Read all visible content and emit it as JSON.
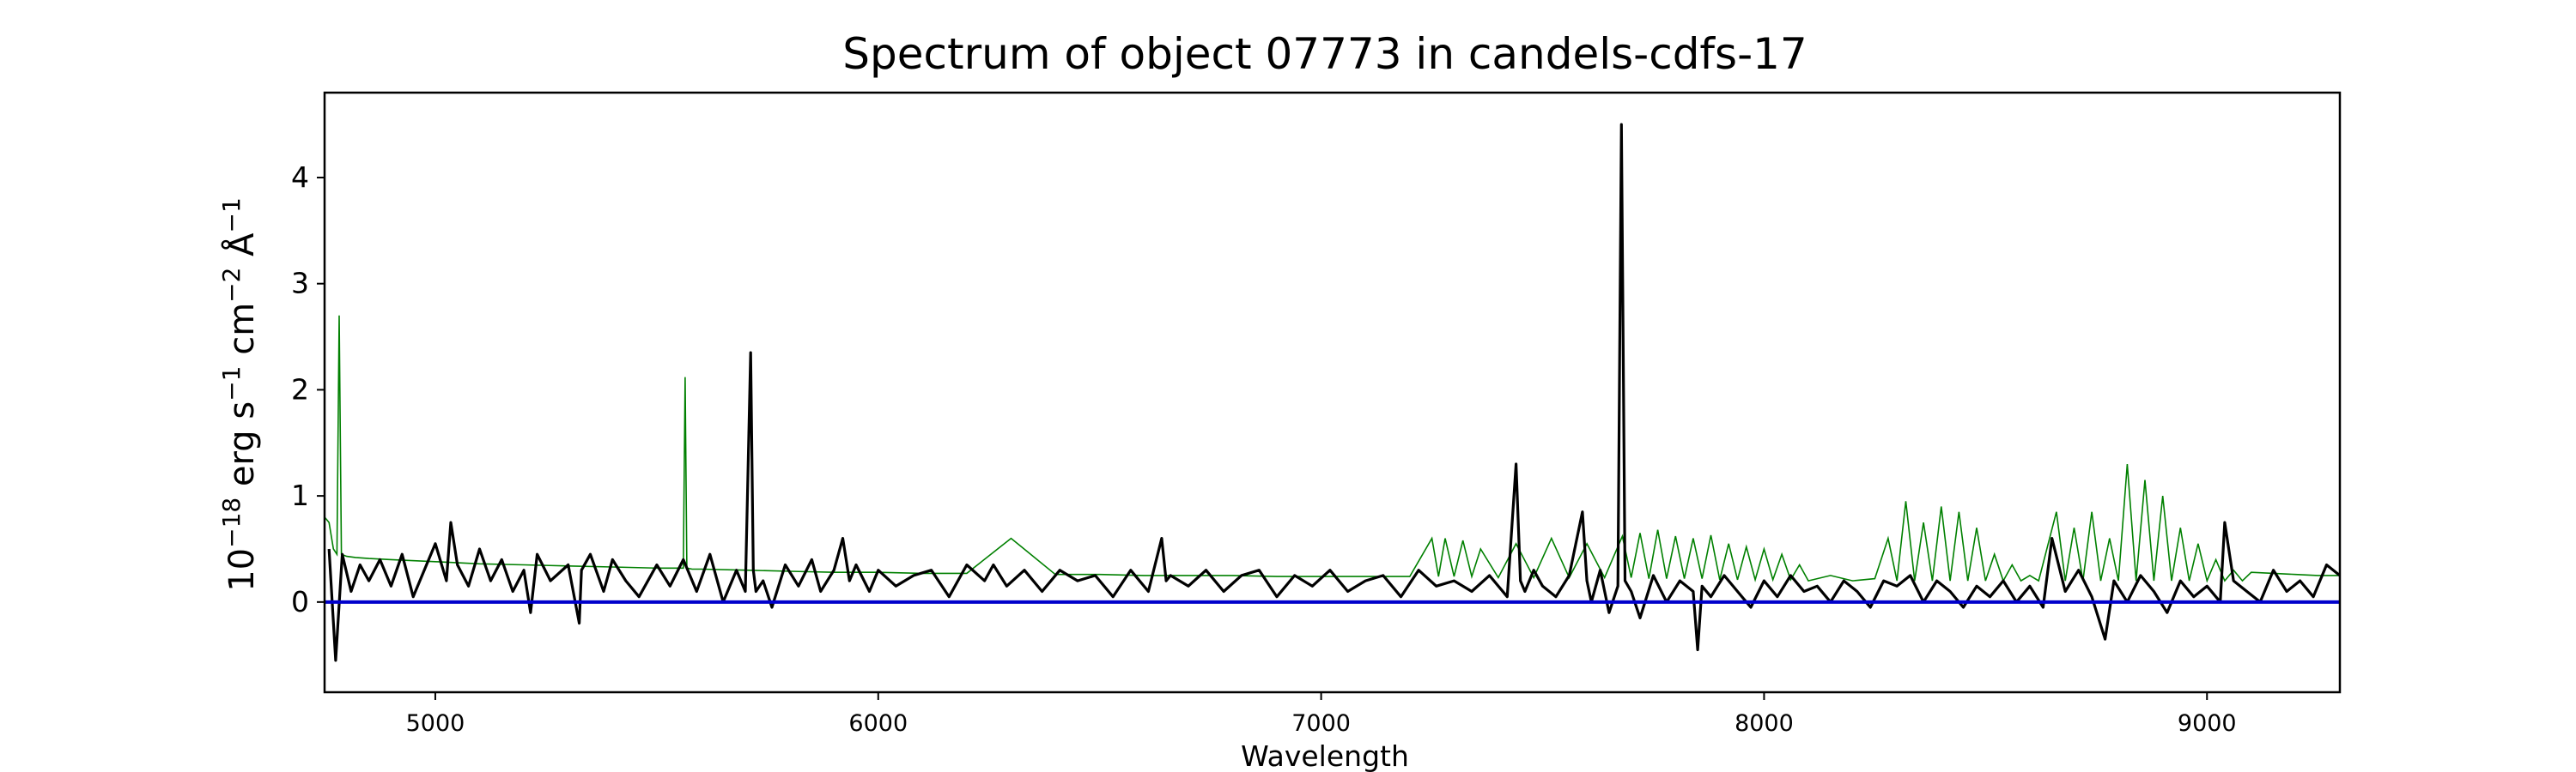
{
  "chart_data": {
    "type": "line",
    "title": "Spectrum of object 07773 in candels-cdfs-17",
    "xlabel": "Wavelength",
    "ylabel_parts": [
      "10",
      "−18",
      " erg s",
      "−1",
      " cm",
      "−2",
      " Å",
      "−1"
    ],
    "xlim": [
      4750,
      9300
    ],
    "ylim": [
      -0.85,
      4.8
    ],
    "xticks": [
      5000,
      6000,
      7000,
      8000,
      9000
    ],
    "yticks": [
      0,
      1,
      2,
      3,
      4
    ],
    "grid": false,
    "colors": {
      "spectrum": "#000000",
      "model": "#008000",
      "zero_line": "#0000cc"
    },
    "series": [
      {
        "role": "spectrum",
        "x": [
          4760,
          4775,
          4790,
          4810,
          4830,
          4850,
          4875,
          4900,
          4925,
          4950,
          4975,
          5000,
          5025,
          5035,
          5050,
          5075,
          5100,
          5125,
          5150,
          5175,
          5200,
          5215,
          5230,
          5260,
          5300,
          5325,
          5330,
          5350,
          5380,
          5400,
          5430,
          5460,
          5500,
          5530,
          5560,
          5590,
          5620,
          5650,
          5680,
          5700,
          5712,
          5718,
          5724,
          5740,
          5760,
          5790,
          5820,
          5850,
          5870,
          5900,
          5920,
          5935,
          5950,
          5980,
          6000,
          6040,
          6080,
          6120,
          6160,
          6200,
          6240,
          6260,
          6290,
          6330,
          6370,
          6410,
          6450,
          6490,
          6530,
          6570,
          6610,
          6640,
          6650,
          6660,
          6700,
          6740,
          6780,
          6820,
          6860,
          6900,
          6940,
          6980,
          7020,
          7060,
          7100,
          7140,
          7180,
          7220,
          7260,
          7300,
          7340,
          7380,
          7420,
          7440,
          7450,
          7460,
          7480,
          7500,
          7530,
          7560,
          7590,
          7600,
          7610,
          7630,
          7650,
          7670,
          7678,
          7686,
          7700,
          7720,
          7750,
          7780,
          7810,
          7840,
          7850,
          7860,
          7880,
          7910,
          7940,
          7970,
          8000,
          8030,
          8060,
          8090,
          8120,
          8150,
          8180,
          8210,
          8240,
          8270,
          8300,
          8330,
          8360,
          8390,
          8420,
          8450,
          8480,
          8510,
          8540,
          8570,
          8600,
          8630,
          8650,
          8680,
          8710,
          8740,
          8770,
          8790,
          8820,
          8850,
          8880,
          8910,
          8940,
          8970,
          9000,
          9030,
          9040,
          9060,
          9090,
          9120,
          9150,
          9180,
          9210,
          9240,
          9270,
          9300
        ],
        "y": [
          0.5,
          -0.55,
          0.45,
          0.1,
          0.35,
          0.2,
          0.4,
          0.15,
          0.45,
          0.05,
          0.3,
          0.55,
          0.2,
          0.75,
          0.35,
          0.15,
          0.5,
          0.2,
          0.4,
          0.1,
          0.3,
          -0.1,
          0.45,
          0.2,
          0.35,
          -0.2,
          0.3,
          0.45,
          0.1,
          0.4,
          0.2,
          0.05,
          0.35,
          0.15,
          0.4,
          0.1,
          0.45,
          0.0,
          0.3,
          0.1,
          2.35,
          0.3,
          0.1,
          0.2,
          -0.05,
          0.35,
          0.15,
          0.4,
          0.1,
          0.3,
          0.6,
          0.2,
          0.35,
          0.1,
          0.3,
          0.15,
          0.25,
          0.3,
          0.05,
          0.35,
          0.2,
          0.35,
          0.15,
          0.3,
          0.1,
          0.3,
          0.2,
          0.25,
          0.05,
          0.3,
          0.1,
          0.6,
          0.2,
          0.25,
          0.15,
          0.3,
          0.1,
          0.25,
          0.3,
          0.05,
          0.25,
          0.15,
          0.3,
          0.1,
          0.2,
          0.25,
          0.05,
          0.3,
          0.15,
          0.2,
          0.1,
          0.25,
          0.05,
          1.3,
          0.2,
          0.1,
          0.3,
          0.15,
          0.05,
          0.25,
          0.85,
          0.2,
          0.0,
          0.3,
          -0.1,
          0.15,
          4.5,
          0.2,
          0.1,
          -0.15,
          0.25,
          0.0,
          0.2,
          0.1,
          -0.45,
          0.15,
          0.05,
          0.25,
          0.1,
          -0.05,
          0.2,
          0.05,
          0.25,
          0.1,
          0.15,
          0.0,
          0.2,
          0.1,
          -0.05,
          0.2,
          0.15,
          0.25,
          0.0,
          0.2,
          0.1,
          -0.05,
          0.15,
          0.05,
          0.2,
          0.0,
          0.15,
          -0.05,
          0.6,
          0.1,
          0.3,
          0.05,
          -0.35,
          0.2,
          0.0,
          0.25,
          0.1,
          -0.1,
          0.2,
          0.05,
          0.15,
          0.0,
          0.75,
          0.2,
          0.1,
          0.0,
          0.3,
          0.1,
          0.2,
          0.05,
          0.35,
          0.25
        ]
      },
      {
        "role": "model",
        "x": [
          4750,
          4760,
          4770,
          4778,
          4783,
          4788,
          4800,
          4820,
          4850,
          4900,
          5000,
          5100,
          5200,
          5300,
          5400,
          5500,
          5560,
          5564,
          5568,
          5580,
          5600,
          5700,
          5800,
          5900,
          6000,
          6100,
          6200,
          6300,
          6400,
          6500,
          6600,
          6700,
          6800,
          6900,
          7000,
          7100,
          7200,
          7250,
          7265,
          7280,
          7300,
          7320,
          7340,
          7360,
          7400,
          7440,
          7480,
          7520,
          7560,
          7600,
          7640,
          7680,
          7700,
          7720,
          7740,
          7760,
          7780,
          7800,
          7820,
          7840,
          7860,
          7880,
          7900,
          7920,
          7940,
          7960,
          7980,
          8000,
          8020,
          8040,
          8060,
          8080,
          8100,
          8150,
          8200,
          8250,
          8280,
          8300,
          8320,
          8340,
          8360,
          8380,
          8400,
          8420,
          8440,
          8460,
          8480,
          8500,
          8520,
          8540,
          8560,
          8580,
          8600,
          8620,
          8660,
          8680,
          8700,
          8720,
          8740,
          8760,
          8780,
          8800,
          8820,
          8840,
          8860,
          8880,
          8900,
          8920,
          8940,
          8960,
          8980,
          9000,
          9020,
          9040,
          9060,
          9080,
          9100,
          9150,
          9200,
          9250,
          9300
        ],
        "y": [
          0.8,
          0.75,
          0.5,
          0.45,
          2.7,
          0.45,
          0.43,
          0.42,
          0.41,
          0.4,
          0.38,
          0.36,
          0.35,
          0.34,
          0.33,
          0.32,
          0.32,
          2.12,
          0.32,
          0.31,
          0.31,
          0.3,
          0.29,
          0.28,
          0.28,
          0.27,
          0.27,
          0.6,
          0.26,
          0.26,
          0.25,
          0.25,
          0.25,
          0.24,
          0.24,
          0.24,
          0.24,
          0.6,
          0.24,
          0.6,
          0.24,
          0.58,
          0.24,
          0.5,
          0.23,
          0.55,
          0.23,
          0.6,
          0.23,
          0.55,
          0.23,
          0.62,
          0.23,
          0.65,
          0.22,
          0.68,
          0.22,
          0.62,
          0.22,
          0.6,
          0.22,
          0.63,
          0.21,
          0.55,
          0.21,
          0.52,
          0.21,
          0.5,
          0.21,
          0.45,
          0.21,
          0.35,
          0.2,
          0.25,
          0.2,
          0.22,
          0.6,
          0.2,
          0.95,
          0.2,
          0.75,
          0.2,
          0.9,
          0.2,
          0.85,
          0.2,
          0.7,
          0.2,
          0.45,
          0.2,
          0.35,
          0.2,
          0.25,
          0.2,
          0.85,
          0.2,
          0.7,
          0.2,
          0.85,
          0.2,
          0.6,
          0.2,
          1.3,
          0.2,
          1.15,
          0.2,
          1.0,
          0.2,
          0.7,
          0.2,
          0.55,
          0.2,
          0.4,
          0.2,
          0.3,
          0.2,
          0.28,
          0.27,
          0.26,
          0.25,
          0.25
        ]
      }
    ],
    "zero_line": 0
  }
}
